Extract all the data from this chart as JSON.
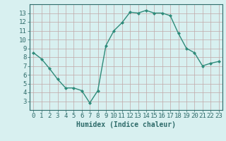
{
  "x": [
    0,
    1,
    2,
    3,
    4,
    5,
    6,
    7,
    8,
    9,
    10,
    11,
    12,
    13,
    14,
    15,
    16,
    17,
    18,
    19,
    20,
    21,
    22,
    23
  ],
  "y": [
    8.5,
    7.8,
    6.7,
    5.5,
    4.5,
    4.5,
    4.2,
    2.8,
    4.2,
    9.3,
    11.0,
    11.9,
    13.1,
    13.0,
    13.3,
    13.0,
    13.0,
    12.7,
    10.7,
    9.0,
    8.5,
    7.0,
    7.3,
    7.5
  ],
  "xlabel": "Humidex (Indice chaleur)",
  "ylim": [
    2,
    14
  ],
  "xlim": [
    -0.5,
    23.5
  ],
  "yticks": [
    3,
    4,
    5,
    6,
    7,
    8,
    9,
    10,
    11,
    12,
    13
  ],
  "xticks": [
    0,
    1,
    2,
    3,
    4,
    5,
    6,
    7,
    8,
    9,
    10,
    11,
    12,
    13,
    14,
    15,
    16,
    17,
    18,
    19,
    20,
    21,
    22,
    23
  ],
  "xtick_labels": [
    "0",
    "1",
    "2",
    "3",
    "4",
    "5",
    "6",
    "7",
    "8",
    "9",
    "10",
    "11",
    "12",
    "13",
    "14",
    "15",
    "16",
    "17",
    "18",
    "19",
    "20",
    "21",
    "22",
    "23"
  ],
  "line_color": "#2e8b7a",
  "marker_color": "#2e8b7a",
  "bg_color": "#d8f0f0",
  "grid_color": "#c0a8a8",
  "axis_label_color": "#2e6b6a",
  "tick_color": "#2e6b6a",
  "xlabel_fontsize": 7,
  "tick_fontsize": 6.5
}
